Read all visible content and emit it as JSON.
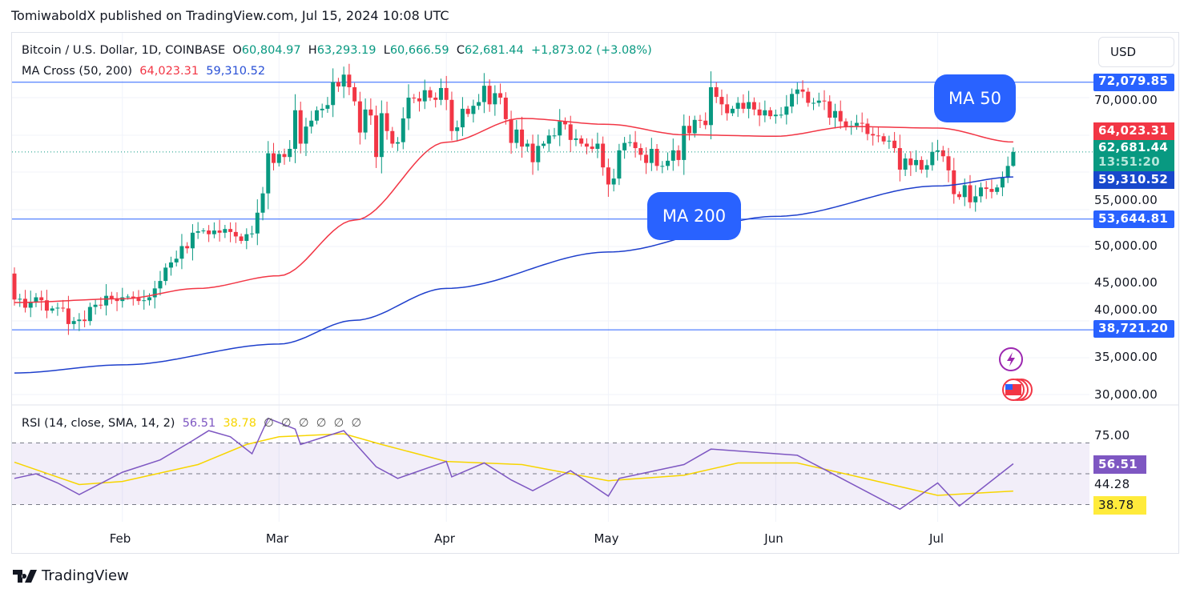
{
  "header": {
    "published": "TomiwaboldX published on TradingView.com, Jul 15, 2024 10:08 UTC"
  },
  "legend": {
    "symbol": "Bitcoin / U.S. Dollar, 1D, COINBASE",
    "o_label": "O",
    "o": "60,804.97",
    "h_label": "H",
    "h": "63,293.19",
    "l_label": "L",
    "l": "60,666.59",
    "c_label": "C",
    "c": "62,681.44",
    "change": "+1,873.02 (+3.08%)",
    "ma_name": "MA Cross (50, 200)",
    "ma50": "64,023.31",
    "ma200": "59,310.52",
    "rsi_name": "RSI (14, close, SMA, 14, 2)",
    "rsi": "56.51",
    "rsi_sma": "38.78",
    "na_values": [
      "∅",
      "∅",
      "∅",
      "∅",
      "∅",
      "∅"
    ]
  },
  "currency": "USD",
  "callouts": {
    "ma50": "MA 50",
    "ma200": "MA 200"
  },
  "price_tags": {
    "hline_top": "72,079.85",
    "ma50": "64,023.31",
    "last": "62,681.44",
    "countdown": "13:51:20",
    "ma200": "59,310.52",
    "hline_mid": "53,644.81",
    "hline_low": "38,721.20"
  },
  "rsi_tags": {
    "rsi": "56.51",
    "sma": "38.78",
    "mid": "44.28"
  },
  "brand": "TradingView",
  "colors": {
    "up": "#089981",
    "down": "#f23645",
    "ma50": "#f23645",
    "ma200": "#1e3fcc",
    "hline": "#2962ff",
    "rsi": "#7e57c2",
    "rsi_sma": "#f7d500"
  },
  "chart_data": {
    "type": "candlestick",
    "symbol": "BTCUSD",
    "yaxis_ticks": [
      "70,000.00",
      "55,000.00",
      "50,000.00",
      "45,000.00",
      "40,000.00",
      "35,000.00",
      "30,000.00"
    ],
    "ylim": [
      30000,
      75000
    ],
    "xaxis_ticks": [
      "Feb",
      "Mar",
      "Apr",
      "May",
      "Jun",
      "Jul"
    ],
    "first_open": 46300,
    "last_candle": {
      "open": 60804.97,
      "high": 63293.19,
      "low": 60666.59,
      "close": 62681.44
    },
    "daily_close": [
      {
        "month": "Jan",
        "start_day": 12,
        "values": [
          42800,
          42900,
          41700,
          42500,
          43100,
          42700,
          41300,
          41600,
          41700,
          41600,
          39500,
          39900,
          40100,
          39900,
          41800,
          42100,
          42000,
          43300,
          42900,
          42600
        ]
      },
      {
        "month": "Feb",
        "start_day": 1,
        "values": [
          43100,
          43200,
          43000,
          42600,
          42700,
          43100,
          44300,
          45300,
          47100,
          47800,
          48300,
          50000,
          49700,
          51800,
          52000,
          52100,
          51600,
          52100,
          51800,
          52300,
          51900,
          51300,
          50700,
          51600,
          51700,
          54500,
          57100,
          62500,
          61200
        ]
      },
      {
        "month": "Mar",
        "start_day": 1,
        "values": [
          62400,
          62000,
          63100,
          68300,
          63800,
          66100,
          66900,
          68300,
          68500,
          69000,
          72100,
          71500,
          73100,
          71400,
          69500,
          65300,
          68400,
          67600,
          62000,
          67900,
          65500,
          63800,
          64000,
          67200,
          70000,
          69900,
          69500,
          71000,
          70000,
          69700,
          71300
        ]
      },
      {
        "month": "Apr",
        "start_day": 1,
        "values": [
          69700,
          65500,
          66000,
          68500,
          67800,
          68900,
          69400,
          71600,
          69100,
          70600,
          70000,
          67100,
          63900,
          65700,
          63400,
          63800,
          61300,
          63500,
          63800,
          64900,
          64900,
          66800,
          66400,
          64300,
          64500,
          63800,
          63400,
          63100,
          63800,
          60600
        ]
      },
      {
        "month": "May",
        "start_day": 1,
        "values": [
          58300,
          59100,
          62900,
          63900,
          64000,
          63200,
          62300,
          61200,
          63100,
          60800,
          60800,
          61500,
          62900,
          61600,
          66200,
          65200,
          67000,
          66900,
          66300,
          71400,
          70100,
          69100,
          67900,
          68500,
          69300,
          68500,
          69400,
          68400,
          67600,
          68300,
          67500
        ]
      },
      {
        "month": "Jun",
        "start_day": 1,
        "values": [
          67700,
          67700,
          68800,
          70500,
          71100,
          70800,
          69300,
          69300,
          69600,
          69500,
          67300,
          68200,
          66800,
          66000,
          66200,
          66600,
          66500,
          65100,
          64900,
          64800,
          64100,
          64200,
          63200,
          60300,
          61800,
          60900,
          61600,
          60300,
          60900,
          62700
        ]
      },
      {
        "month": "Jul",
        "start_day": 1,
        "values": [
          62900,
          62100,
          60200,
          57000,
          56600,
          58200,
          55900,
          56700,
          57900,
          57700,
          57300,
          57900,
          59200,
          60800,
          62681.44
        ]
      }
    ],
    "ma50": [
      [
        "Jan 12",
        42400
      ],
      [
        "Feb 1",
        42900
      ],
      [
        "Feb 15",
        44300
      ],
      [
        "Mar 1",
        46000
      ],
      [
        "Mar 15",
        53500
      ],
      [
        "Apr 1",
        64000
      ],
      [
        "Apr 15",
        67200
      ],
      [
        "May 1",
        66400
      ],
      [
        "May 15",
        65000
      ],
      [
        "Jun 1",
        64800
      ],
      [
        "Jun 15",
        66100
      ],
      [
        "Jul 1",
        65900
      ],
      [
        "Jul 15",
        64023.31
      ]
    ],
    "ma200": [
      [
        "Jan 12",
        32900
      ],
      [
        "Feb 1",
        34000
      ],
      [
        "Mar 1",
        36800
      ],
      [
        "Mar 15",
        40000
      ],
      [
        "Apr 1",
        44300
      ],
      [
        "May 1",
        49200
      ],
      [
        "Jun 1",
        54000
      ],
      [
        "Jul 1",
        58100
      ],
      [
        "Jul 15",
        59310.52
      ]
    ],
    "hlines": [
      72079.85,
      53644.81,
      38721.2
    ],
    "rsi": {
      "bands": [
        70,
        50,
        30
      ],
      "ticks": [
        "75.00",
        "44.28"
      ],
      "values": [
        [
          "Jan 12",
          47
        ],
        [
          "Jan 16",
          50
        ],
        [
          "Jan 20",
          44
        ],
        [
          "Jan 24",
          36.5
        ],
        [
          "Feb 1",
          51
        ],
        [
          "Feb 8",
          59
        ],
        [
          "Feb 14",
          71.5
        ],
        [
          "Feb 17",
          78
        ],
        [
          "Feb 21",
          74
        ],
        [
          "Feb 25",
          63
        ],
        [
          "Feb 28",
          86
        ],
        [
          "Mar 4",
          79
        ],
        [
          "Mar 5",
          69
        ],
        [
          "Mar 13",
          78
        ],
        [
          "Mar 19",
          54.5
        ],
        [
          "Mar 23",
          47
        ],
        [
          "Apr 1",
          58
        ],
        [
          "Apr 2",
          48
        ],
        [
          "Apr 8",
          57
        ],
        [
          "Apr 13",
          46
        ],
        [
          "Apr 17",
          39
        ],
        [
          "Apr 24",
          52
        ],
        [
          "May 1",
          35.5
        ],
        [
          "May 3",
          47
        ],
        [
          "May 15",
          56
        ],
        [
          "May 20",
          66
        ],
        [
          "Jun 5",
          62
        ],
        [
          "Jun 11",
          51
        ],
        [
          "Jun 24",
          27
        ],
        [
          "Jul 1",
          44
        ],
        [
          "Jul 5",
          29
        ],
        [
          "Jul 15",
          56.51
        ]
      ],
      "sma": [
        [
          "Jan 12",
          57.5
        ],
        [
          "Jan 24",
          43
        ],
        [
          "Feb 1",
          45
        ],
        [
          "Feb 15",
          56
        ],
        [
          "Feb 24",
          69
        ],
        [
          "Mar 1",
          74
        ],
        [
          "Mar 13",
          76
        ],
        [
          "Mar 20",
          69
        ],
        [
          "Apr 1",
          58
        ],
        [
          "Apr 15",
          56
        ],
        [
          "May 1",
          45.5
        ],
        [
          "May 15",
          49
        ],
        [
          "May 25",
          57
        ],
        [
          "Jun 5",
          57
        ],
        [
          "Jun 15",
          49
        ],
        [
          "Jul 1",
          36
        ],
        [
          "Jul 15",
          38.78
        ]
      ]
    }
  }
}
